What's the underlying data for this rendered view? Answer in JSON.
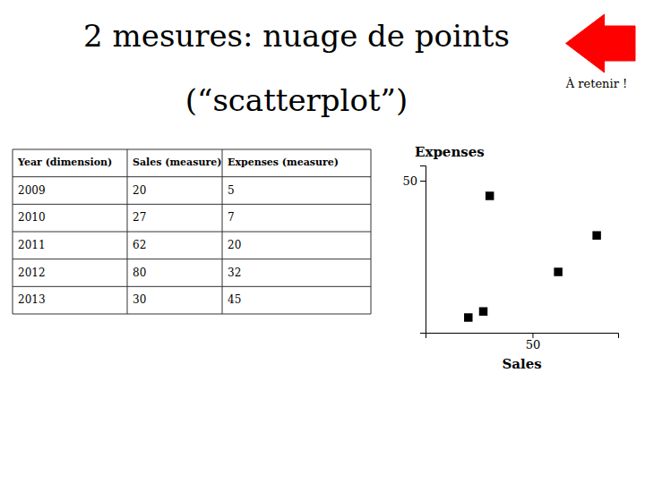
{
  "chart_data": [
    {
      "type": "table",
      "headers": [
        "Year (dimension)",
        "Sales (measure)",
        "Expenses (measure)"
      ],
      "rows": [
        [
          2009,
          20,
          5
        ],
        [
          2010,
          27,
          7
        ],
        [
          2011,
          62,
          20
        ],
        [
          2012,
          80,
          32
        ],
        [
          2013,
          30,
          45
        ]
      ]
    },
    {
      "type": "scatter",
      "title": "2 mesures: nuage de points",
      "subtitle": "(“scatterplot”)",
      "annotations": [
        "À retenir !"
      ],
      "x": [
        20,
        27,
        62,
        80,
        30
      ],
      "values": [
        5,
        7,
        20,
        32,
        45
      ],
      "xlabel": "Sales",
      "ylabel": "Expenses",
      "xlim": [
        0,
        90
      ],
      "ylim": [
        0,
        55
      ],
      "xticks": [
        50
      ],
      "yticks": [
        50
      ],
      "marker": "square",
      "color": "black"
    }
  ]
}
